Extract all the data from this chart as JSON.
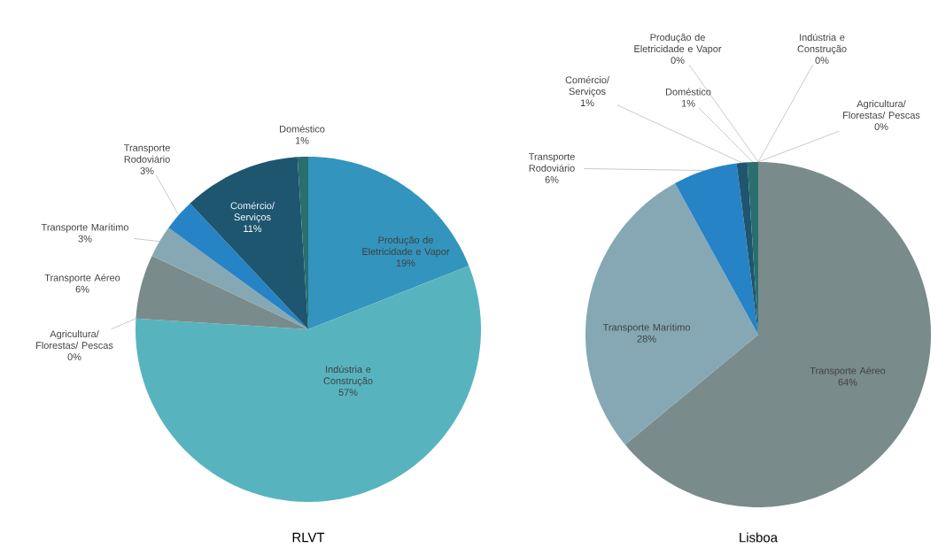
{
  "chart_data": [
    {
      "type": "pie",
      "title": "RLVT",
      "categories": [
        "Produção de Eletricidade e Vapor",
        "Indústria e Construção",
        "Agricultura/ Florestas/ Pescas",
        "Transporte Aéreo",
        "Transporte Marítimo",
        "Transporte Rodoviário",
        "Comércio/ Serviços",
        "Doméstico"
      ],
      "values": [
        19,
        57,
        0,
        6,
        3,
        3,
        11,
        1
      ],
      "value_labels": [
        "19%",
        "57%",
        "0%",
        "6%",
        "3%",
        "3%",
        "11%",
        "1%"
      ],
      "colors": [
        "#3394bd",
        "#57b4bf",
        "#4aa58a",
        "#798b8b",
        "#85a8b4",
        "#2683c6",
        "#1e5670",
        "#2a6e6e"
      ]
    },
    {
      "type": "pie",
      "title": "Lisboa",
      "categories": [
        "Produção de Eletricidade e Vapor",
        "Indústria e Construção",
        "Agricultura/ Florestas/ Pescas",
        "Transporte Aéreo",
        "Transporte Marítimo",
        "Transporte Rodoviário",
        "Comércio/ Serviços",
        "Doméstico"
      ],
      "values": [
        0,
        0,
        0,
        64,
        28,
        6,
        1,
        1
      ],
      "value_labels": [
        "0%",
        "0%",
        "0%",
        "64%",
        "28%",
        "6%",
        "1%",
        "1%"
      ],
      "colors": [
        "#3394bd",
        "#57b4bf",
        "#4aa58a",
        "#798b8b",
        "#85a8b4",
        "#2683c6",
        "#1e5670",
        "#2a6e6e"
      ]
    }
  ]
}
